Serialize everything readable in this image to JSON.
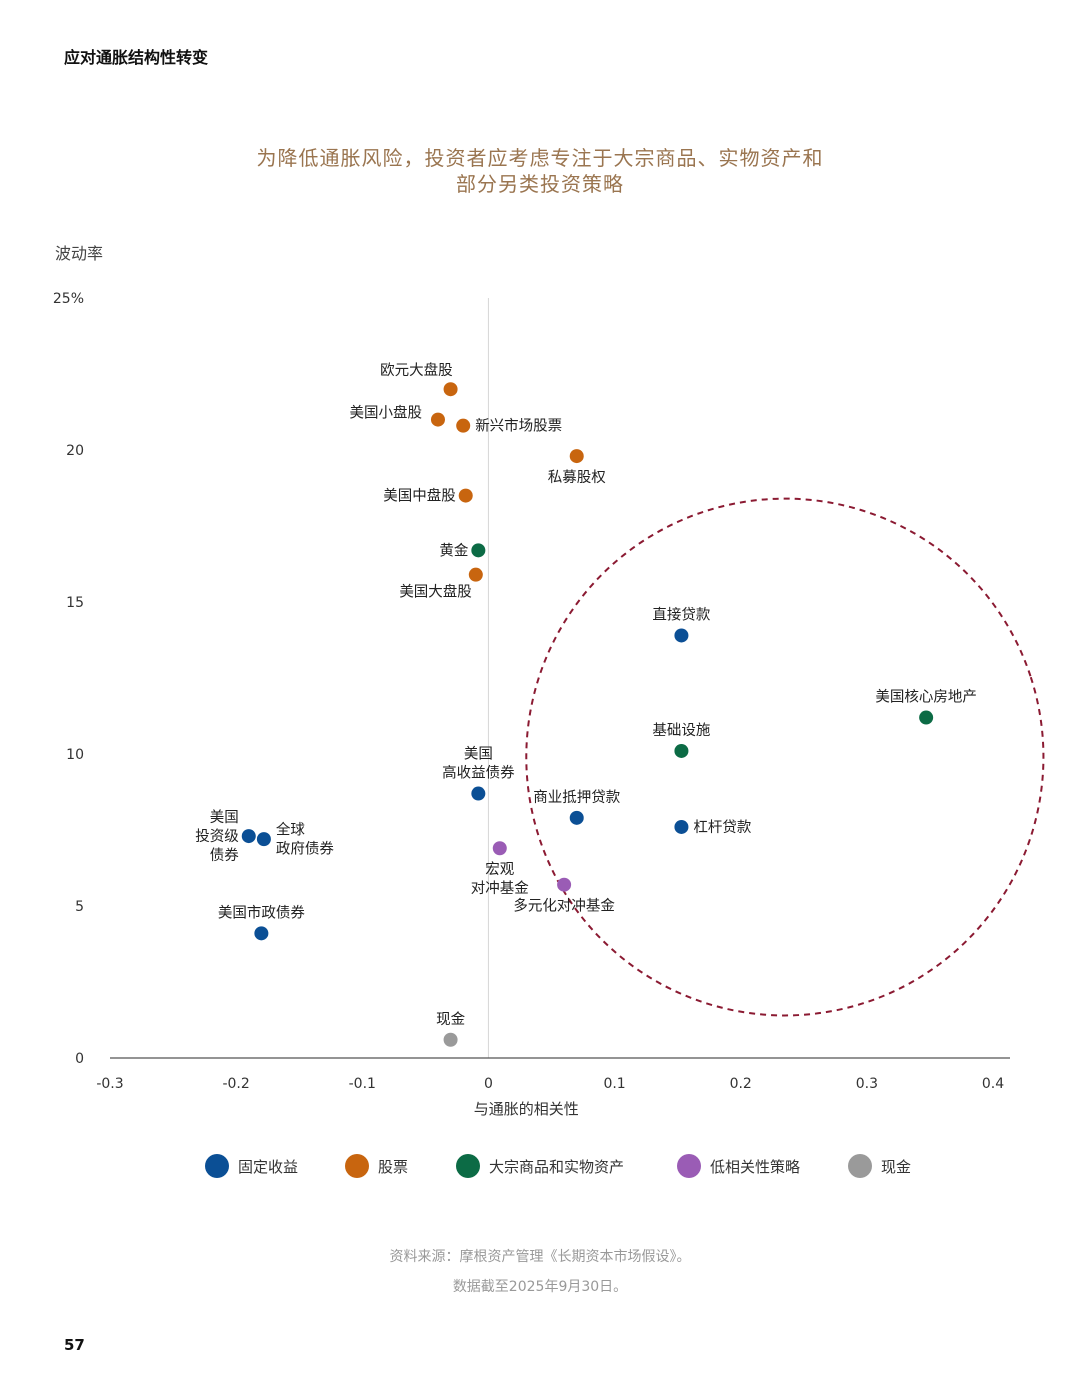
{
  "page": {
    "header": "应对通胀结构性转变",
    "page_number": "57"
  },
  "source": {
    "line1": "资料来源：摩根资产管理《长期资本市场假设》。",
    "line2": "数据截至2025年9月30日。"
  },
  "colors": {
    "固定收益": "#0b4f95",
    "股票": "#c8650f",
    "大宗商品和实物资产": "#0c6b45",
    "低相关性策略": "#9a5cb5",
    "现金": "#9a9a9a",
    "ellipse": "#8b1a32",
    "title": "#9a7550"
  },
  "chart_data": {
    "type": "scatter",
    "title": [
      "为降低通胀风险，投资者应考虑专注于大宗商品、实物资产和",
      "部分另类投资策略"
    ],
    "xlabel": "与通胀的相关性",
    "ylabel": "波动率",
    "xlim": [
      -0.3,
      0.4
    ],
    "ylim": [
      0,
      25
    ],
    "xticks": [
      {
        "value": -0.3,
        "label": "-0.3"
      },
      {
        "value": -0.2,
        "label": "-0.2"
      },
      {
        "value": -0.1,
        "label": "-0.1"
      },
      {
        "value": 0,
        "label": "0"
      },
      {
        "value": 0.1,
        "label": "0.1"
      },
      {
        "value": 0.2,
        "label": "0.2"
      },
      {
        "value": 0.3,
        "label": "0.3"
      },
      {
        "value": 0.4,
        "label": "0.4"
      }
    ],
    "yticks": [
      {
        "value": 0,
        "label": "0"
      },
      {
        "value": 5,
        "label": "5"
      },
      {
        "value": 10,
        "label": "10"
      },
      {
        "value": 15,
        "label": "15"
      },
      {
        "value": 20,
        "label": "20"
      },
      {
        "value": 25,
        "label": "25%"
      }
    ],
    "legend": [
      "固定收益",
      "股票",
      "大宗商品和实物资产",
      "低相关性策略",
      "现金"
    ],
    "highlight": {
      "shape": "dashed-ellipse",
      "center": [
        0.235,
        9.9
      ],
      "semi_axis_x": 0.205,
      "semi_axis_y": 8.5,
      "tilt_deg": -18
    },
    "points": [
      {
        "label": [
          "欧元大盘股"
        ],
        "category": "股票",
        "x": -0.03,
        "y": 22.0,
        "label_pos": "above-left"
      },
      {
        "label": [
          "美国小盘股"
        ],
        "category": "股票",
        "x": -0.04,
        "y": 21.0,
        "label_pos": "upper-left"
      },
      {
        "label": [
          "新兴市场股票"
        ],
        "category": "股票",
        "x": -0.02,
        "y": 20.8,
        "label_pos": "right"
      },
      {
        "label": [
          "私募股权"
        ],
        "category": "股票",
        "x": 0.07,
        "y": 19.8,
        "label_pos": "below"
      },
      {
        "label": [
          "美国中盘股"
        ],
        "category": "股票",
        "x": -0.018,
        "y": 18.5,
        "label_pos": "left"
      },
      {
        "label": [
          "黄金"
        ],
        "category": "大宗商品和实物资产",
        "x": -0.008,
        "y": 16.7,
        "label_pos": "left"
      },
      {
        "label": [
          "美国大盘股"
        ],
        "category": "股票",
        "x": -0.01,
        "y": 15.9,
        "label_pos": "below-left"
      },
      {
        "label": [
          "直接贷款"
        ],
        "category": "固定收益",
        "x": 0.153,
        "y": 13.9,
        "label_pos": "above"
      },
      {
        "label": [
          "美国核心房地产"
        ],
        "category": "大宗商品和实物资产",
        "x": 0.347,
        "y": 11.2,
        "label_pos": "above"
      },
      {
        "label": [
          "基础设施"
        ],
        "category": "大宗商品和实物资产",
        "x": 0.153,
        "y": 10.1,
        "label_pos": "above"
      },
      {
        "label": [
          "美国",
          "高收益债券"
        ],
        "category": "固定收益",
        "x": -0.008,
        "y": 8.7,
        "label_pos": "above"
      },
      {
        "label": [
          "商业抵押贷款"
        ],
        "category": "固定收益",
        "x": 0.07,
        "y": 7.9,
        "label_pos": "above"
      },
      {
        "label": [
          "杠杆贷款"
        ],
        "category": "固定收益",
        "x": 0.153,
        "y": 7.6,
        "label_pos": "right"
      },
      {
        "label": [
          "美国",
          "投资级",
          "债券"
        ],
        "category": "固定收益",
        "x": -0.19,
        "y": 7.3,
        "label_pos": "left"
      },
      {
        "label": [
          "全球",
          "政府债券"
        ],
        "category": "固定收益",
        "x": -0.178,
        "y": 7.2,
        "label_pos": "right"
      },
      {
        "label": [
          "宏观",
          "对冲基金"
        ],
        "category": "低相关性策略",
        "x": 0.009,
        "y": 6.9,
        "label_pos": "below"
      },
      {
        "label": [
          "多元化对冲基金"
        ],
        "category": "低相关性策略",
        "x": 0.06,
        "y": 5.7,
        "label_pos": "below"
      },
      {
        "label": [
          "美国市政债券"
        ],
        "category": "固定收益",
        "x": -0.18,
        "y": 4.1,
        "label_pos": "above"
      },
      {
        "label": [
          "现金"
        ],
        "category": "现金",
        "x": -0.03,
        "y": 0.6,
        "label_pos": "above"
      }
    ]
  }
}
